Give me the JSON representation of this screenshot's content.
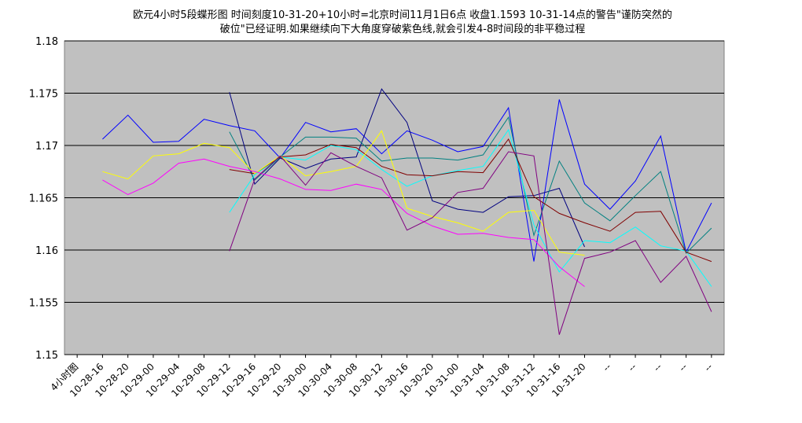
{
  "chart_data": {
    "type": "line",
    "title": "欧元4小时5段蝶形图 时间刻度10-31-20+10小时=北京时间11月1日6点 收盘1.1593 10-31-14点的警告\"谨防突然的",
    "subtitle": "破位\"已经证明.如果继续向下大角度穿破紫色线,就会引发4-8时间段的非平稳过程",
    "xlabel": "",
    "ylabel": "",
    "ylim": [
      1.15,
      1.18
    ],
    "yticks": [
      "1.15",
      "1.155",
      "1.16",
      "1.165",
      "1.17",
      "1.175",
      "1.18"
    ],
    "grid": "horizontal",
    "plot_background": "#c0c0c0",
    "categories": [
      "4小时图",
      "10-28-16",
      "10-28-20",
      "10-29-00",
      "10-29-04",
      "10-29-08",
      "10-29-12",
      "10-29-16",
      "10-29-20",
      "10-30-00",
      "10-30-04",
      "10-30-08",
      "10-30-12",
      "10-30-16",
      "10-30-20",
      "10-31-00",
      "10-31-04",
      "10-31-08",
      "10-31-12",
      "10-31-16",
      "10-31-20",
      "--",
      "--",
      "--",
      "--",
      "--"
    ],
    "series": [
      {
        "color": "#0000ff",
        "values": [
          null,
          1.1706,
          1.1729,
          1.1703,
          1.1704,
          1.1725,
          1.1719,
          1.1714,
          1.1688,
          1.1722,
          1.1713,
          1.1716,
          1.1692,
          1.1714,
          1.1705,
          1.1694,
          1.1699,
          1.1736,
          1.1589,
          1.1744,
          1.1663,
          1.1639,
          1.1666,
          1.1709,
          1.1598,
          1.1645
        ]
      },
      {
        "color": "#000080",
        "values": [
          null,
          null,
          null,
          null,
          null,
          null,
          1.1751,
          1.1663,
          1.1688,
          1.1678,
          1.1687,
          1.1689,
          1.1754,
          1.1722,
          1.1647,
          1.1639,
          1.1636,
          1.1651,
          1.1652,
          1.1659,
          1.1603,
          null,
          null,
          null,
          null,
          null
        ]
      },
      {
        "color": "#008080",
        "values": [
          null,
          null,
          null,
          null,
          null,
          null,
          1.1713,
          1.1667,
          1.1689,
          1.1708,
          1.1708,
          1.1707,
          1.1685,
          1.1688,
          1.1688,
          1.1686,
          1.1691,
          1.1727,
          1.1614,
          1.1685,
          1.1645,
          1.1628,
          1.1652,
          1.1675,
          1.1597,
          1.1621
        ]
      },
      {
        "color": "#00ffff",
        "values": [
          null,
          null,
          null,
          null,
          null,
          null,
          1.1636,
          1.1672,
          1.1689,
          1.1686,
          1.17,
          1.1696,
          1.1677,
          1.1661,
          1.1671,
          1.1676,
          1.168,
          1.1715,
          1.1624,
          1.1579,
          1.1609,
          1.1607,
          1.1622,
          1.1604,
          1.1599,
          1.1565
        ]
      },
      {
        "color": "#800000",
        "values": [
          null,
          null,
          null,
          null,
          null,
          null,
          1.1677,
          1.1673,
          1.1689,
          1.1691,
          1.1701,
          1.1698,
          1.168,
          1.1672,
          1.1671,
          1.1675,
          1.1674,
          1.1706,
          1.1651,
          1.1635,
          1.1626,
          1.1618,
          1.1636,
          1.1637,
          1.1598,
          1.1589
        ]
      },
      {
        "color": "#ffff00",
        "values": [
          null,
          1.1675,
          1.1668,
          1.169,
          1.1692,
          1.1702,
          1.1698,
          1.1673,
          1.169,
          1.1671,
          1.1675,
          1.168,
          1.1714,
          1.164,
          1.1632,
          1.1626,
          1.1618,
          1.1636,
          1.1638,
          1.1598,
          1.1595,
          null,
          null,
          null,
          null,
          null
        ]
      },
      {
        "color": "#ff00ff",
        "values": [
          null,
          1.1667,
          1.1653,
          1.1664,
          1.1683,
          1.1687,
          1.168,
          1.1675,
          1.1668,
          1.1658,
          1.1657,
          1.1663,
          1.1658,
          1.1635,
          1.1623,
          1.1615,
          1.1616,
          1.1612,
          1.161,
          1.1584,
          1.1565,
          null,
          null,
          null,
          null,
          null
        ]
      },
      {
        "color": "#800080",
        "values": [
          null,
          null,
          null,
          null,
          null,
          null,
          1.1599,
          1.1668,
          1.169,
          1.1662,
          1.1693,
          1.168,
          1.1669,
          1.1619,
          1.1631,
          1.1655,
          1.1659,
          1.1694,
          1.169,
          1.1519,
          1.1592,
          1.1598,
          1.1609,
          1.1569,
          1.1594,
          1.1541
        ]
      }
    ]
  }
}
